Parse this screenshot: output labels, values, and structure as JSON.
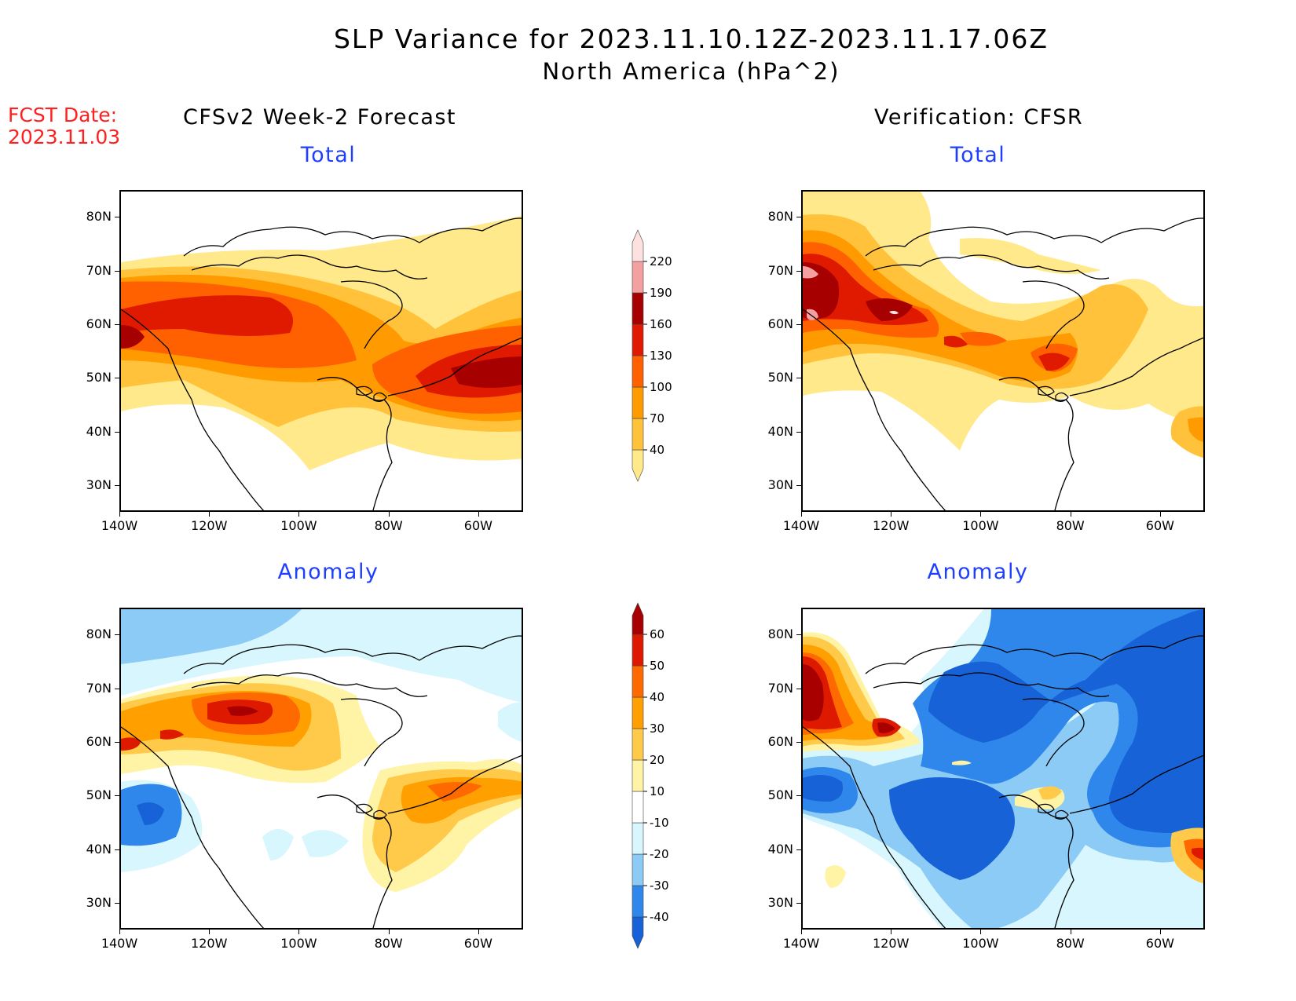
{
  "title": "SLP Variance for 2023.11.10.12Z-2023.11.17.06Z",
  "subtitle": "North America (hPa^2)",
  "fcst_label": "FCST Date:",
  "fcst_date": "2023.11.03",
  "left_column_title": "CFSv2 Week-2 Forecast",
  "right_column_title": "Verification: CFSR",
  "panels": {
    "fcst_total": "Total",
    "fcst_anomaly": "Anomaly",
    "verif_total": "Total",
    "verif_anomaly": "Anomaly"
  },
  "lat_labels": [
    "80N",
    "70N",
    "60N",
    "50N",
    "40N",
    "30N"
  ],
  "lon_labels": [
    "140W",
    "120W",
    "100W",
    "80W",
    "60W"
  ],
  "map_extent": {
    "lon_min": -140,
    "lon_max": -50,
    "lat_min": 25,
    "lat_max": 85
  },
  "total_colorbar": {
    "levels": [
      "40",
      "70",
      "100",
      "130",
      "160",
      "190",
      "220"
    ],
    "colors": [
      "#ffe98a",
      "#ffc23a",
      "#ff9a00",
      "#ff6000",
      "#e01a00",
      "#a60000",
      "#f4a0a0",
      "#fde1e1"
    ]
  },
  "anomaly_colorbar": {
    "levels": [
      "-40",
      "-30",
      "-20",
      "-10",
      "10",
      "20",
      "30",
      "40",
      "50",
      "60"
    ],
    "colors": [
      "#1762d6",
      "#2f86eb",
      "#8ccbf6",
      "#d8f6fd",
      "#ffffff",
      "#fff3a6",
      "#ffc94a",
      "#ff9f00",
      "#ff6a00",
      "#dd1a00",
      "#a80000"
    ]
  }
}
